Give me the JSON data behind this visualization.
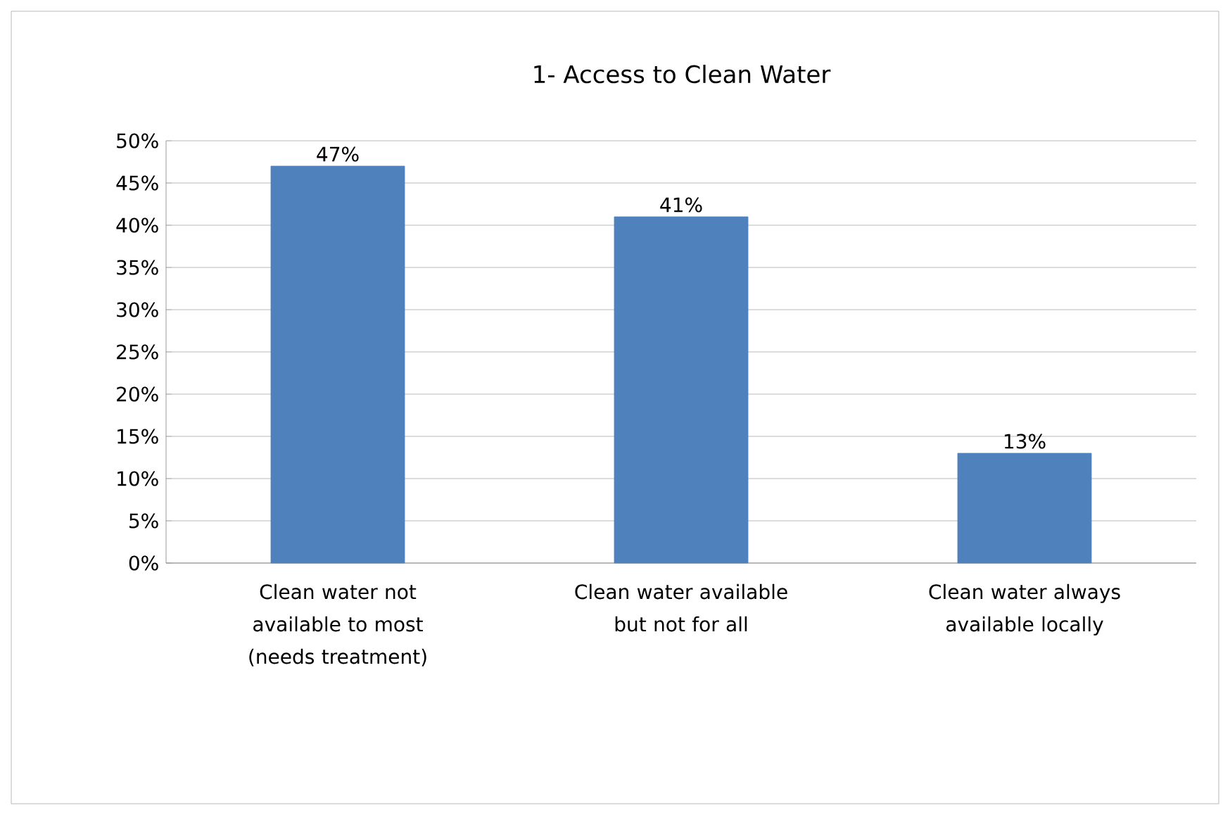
{
  "chart_data": {
    "type": "bar",
    "title": "1- Access to Clean Water",
    "categories": [
      "Clean water  not available to most (needs treatment)",
      "Clean water available but not for all",
      "Clean water always available locally"
    ],
    "values": [
      47,
      41,
      13
    ],
    "value_labels": [
      "47%",
      "41%",
      "13%"
    ],
    "color": "#4f81bd",
    "ylim": [
      0,
      50
    ],
    "yticks": [
      {
        "value": 0,
        "label": "0%"
      },
      {
        "value": 5,
        "label": "5%"
      },
      {
        "value": 10,
        "label": "10%"
      },
      {
        "value": 15,
        "label": "15%"
      },
      {
        "value": 20,
        "label": "20%"
      },
      {
        "value": 25,
        "label": "25%"
      },
      {
        "value": 30,
        "label": "30%"
      },
      {
        "value": 35,
        "label": "35%"
      },
      {
        "value": 40,
        "label": "40%"
      },
      {
        "value": 45,
        "label": "45%"
      },
      {
        "value": 50,
        "label": "50%"
      }
    ],
    "grid": "y"
  }
}
